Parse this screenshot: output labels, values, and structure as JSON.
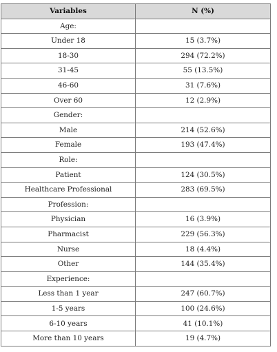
{
  "table": {
    "headers": [
      "Variables",
      "N (%)"
    ],
    "rows": [
      [
        "Age:",
        ""
      ],
      [
        "Under 18",
        "15 (3.7%)"
      ],
      [
        "18-30",
        "294 (72.2%)"
      ],
      [
        "31-45",
        "55 (13.5%)"
      ],
      [
        "46-60",
        "31 (7.6%)"
      ],
      [
        "Over 60",
        "12 (2.9%)"
      ],
      [
        "Gender:",
        ""
      ],
      [
        "Male",
        "214 (52.6%)"
      ],
      [
        "Female",
        "193 (47.4%)"
      ],
      [
        "Role:",
        ""
      ],
      [
        "Patient",
        "124 (30.5%)"
      ],
      [
        "Healthcare Professional",
        "283 (69.5%)"
      ],
      [
        "Profession:",
        ""
      ],
      [
        "Physician",
        "16 (3.9%)"
      ],
      [
        "Pharmacist",
        "229 (56.3%)"
      ],
      [
        "Nurse",
        "18 (4.4%)"
      ],
      [
        "Other",
        "144 (35.4%)"
      ],
      [
        "Experience:",
        ""
      ],
      [
        "Less than 1 year",
        "247 (60.7%)"
      ],
      [
        "1-5 years",
        "100 (24.6%)"
      ],
      [
        "6-10 years",
        "41 (10.1%)"
      ],
      [
        "More than 10 years",
        "19 (4.7%)"
      ]
    ]
  }
}
